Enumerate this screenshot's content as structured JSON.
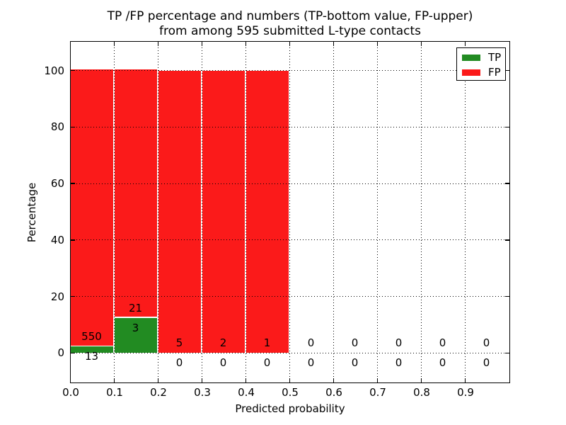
{
  "figure": {
    "title_line1": "TP /FP percentage and numbers (TP-bottom value, FP-upper)",
    "title_line2": "from among 595 submitted L-type contacts",
    "background_color": "#ffffff"
  },
  "axes": {
    "xlabel": "Predicted probability",
    "ylabel": "Percentage",
    "xtick_labels": [
      "0.0",
      "0.1",
      "0.2",
      "0.3",
      "0.4",
      "0.5",
      "0.6",
      "0.7",
      "0.8",
      "0.9"
    ],
    "ytick_labels": [
      "0",
      "20",
      "40",
      "60",
      "80",
      "100"
    ]
  },
  "legend": {
    "position": "upper right",
    "items": [
      {
        "label": "TP",
        "color": "#228b22"
      },
      {
        "label": "FP",
        "color": "#fb1a1a"
      }
    ]
  },
  "chart_data": {
    "type": "bar",
    "stacked": true,
    "title": "TP /FP percentage and numbers (TP-bottom value, FP-upper) from among 595 submitted L-type contacts",
    "total_submitted_contacts": 595,
    "xlabel": "Predicted probability",
    "ylabel": "Percentage",
    "xlim": [
      0.0,
      1.0
    ],
    "ylim": [
      -10.3,
      110.3
    ],
    "yticks": [
      0,
      20,
      40,
      60,
      80,
      100
    ],
    "xticks": [
      0.0,
      0.1,
      0.2,
      0.3,
      0.4,
      0.5,
      0.6,
      0.7,
      0.8,
      0.9
    ],
    "bin_width": 0.1,
    "bin_starts": [
      0.0,
      0.1,
      0.2,
      0.3,
      0.4,
      0.5,
      0.6,
      0.7,
      0.8,
      0.9
    ],
    "grid": {
      "visible": true,
      "style": "dotted",
      "color": "#000000",
      "above_bars": true
    },
    "legend_position": "upper right",
    "annotation_layout": "FP count above, TP count below, centered on each bin",
    "series": [
      {
        "name": "TP",
        "color": "#228b22",
        "counts": [
          13,
          3,
          0,
          0,
          0,
          0,
          0,
          0,
          0,
          0
        ],
        "percents": [
          2.31,
          12.5,
          0,
          0,
          0,
          0,
          0,
          0,
          0,
          0
        ]
      },
      {
        "name": "FP",
        "color": "#fb1a1a",
        "counts": [
          550,
          21,
          5,
          2,
          1,
          0,
          0,
          0,
          0,
          0
        ],
        "percents": [
          97.69,
          87.5,
          100,
          100,
          100,
          0,
          0,
          0,
          0,
          0
        ]
      }
    ]
  }
}
